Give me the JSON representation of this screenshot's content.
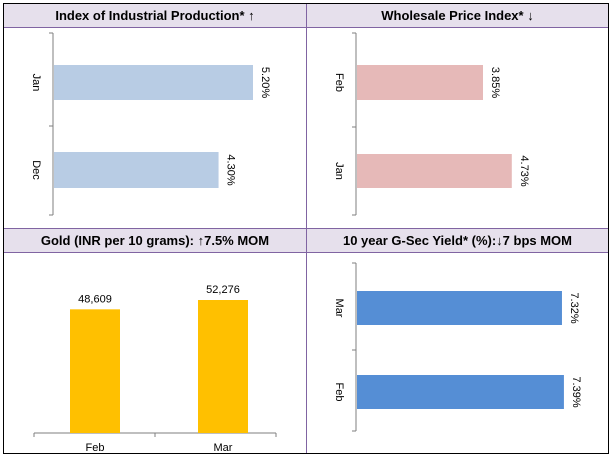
{
  "chart_data": [
    {
      "type": "bar",
      "orientation": "horizontal",
      "title": "Index of Industrial Production* ↑",
      "categories": [
        "Jan",
        "Dec"
      ],
      "values": [
        5.2,
        4.3
      ],
      "value_labels": [
        "5.20%",
        "4.30%"
      ],
      "xlim": [
        0,
        5.6
      ],
      "color": "#b8cce4"
    },
    {
      "type": "bar",
      "orientation": "horizontal",
      "title": "Wholesale Price Index* ↓",
      "categories": [
        "Feb",
        "Jan"
      ],
      "values": [
        3.85,
        4.73
      ],
      "value_labels": [
        "3.85%",
        "4.73%"
      ],
      "xlim": [
        0,
        6.4
      ],
      "color": "#e6b9b8"
    },
    {
      "type": "bar",
      "orientation": "vertical",
      "title": "Gold (INR per 10 grams): ↑7.5% MOM",
      "categories": [
        "Feb",
        "Mar"
      ],
      "values": [
        48609,
        52276
      ],
      "value_labels": [
        "48,609",
        "52,276"
      ],
      "ylim": [
        0,
        56500
      ],
      "color": "#ffc000"
    },
    {
      "type": "bar",
      "orientation": "horizontal",
      "title": "10 year G-Sec Yield* (%):↓7 bps MOM",
      "categories": [
        "Mar",
        "Feb"
      ],
      "values": [
        7.32,
        7.39
      ],
      "value_labels": [
        "7.32%",
        "7.39%"
      ],
      "xlim": [
        0,
        8.0
      ],
      "color": "#558ed5"
    }
  ]
}
